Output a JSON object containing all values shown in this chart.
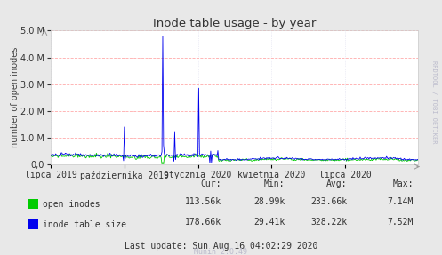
{
  "title": "Inode table usage - by year",
  "ylabel": "number of open inodes",
  "bg_color": "#e8e8e8",
  "plot_bg_color": "#ffffff",
  "grid_color_h": "#ffaaaa",
  "grid_color_v": "#ddddee",
  "x_tick_labels": [
    "lipca 2019",
    "października 2019",
    "stycznia 2020",
    "kwietnia 2020",
    "lipca 2020"
  ],
  "x_tick_positions": [
    0,
    92,
    184,
    276,
    368
  ],
  "ylim": [
    0,
    5000000
  ],
  "yticks": [
    0,
    1000000,
    2000000,
    3000000,
    4000000,
    5000000
  ],
  "legend": [
    {
      "label": "open inodes",
      "color": "#00cc00"
    },
    {
      "label": "inode table size",
      "color": "#0000ee"
    }
  ],
  "stats_labels": [
    "Cur:",
    "Min:",
    "Avg:",
    "Max:"
  ],
  "stats_open": [
    "113.56k",
    "28.99k",
    "233.66k",
    "7.14M"
  ],
  "stats_inode": [
    "178.66k",
    "29.41k",
    "328.22k",
    "7.52M"
  ],
  "last_update": "Last update: Sun Aug 16 04:02:29 2020",
  "munin_label": "Munin 2.0.49",
  "right_label": "RRDTOOL / TOBI OETIKER",
  "n_points": 460,
  "spikes_blue": [
    [
      92,
      1400000
    ],
    [
      140,
      4800000
    ],
    [
      155,
      1200000
    ],
    [
      185,
      2850000
    ],
    [
      200,
      500000
    ]
  ],
  "spikes_green": [
    [
      140,
      80000
    ]
  ],
  "base_green": 250000,
  "base_blue": 310000,
  "noise_green": 70000,
  "noise_blue": 55000
}
